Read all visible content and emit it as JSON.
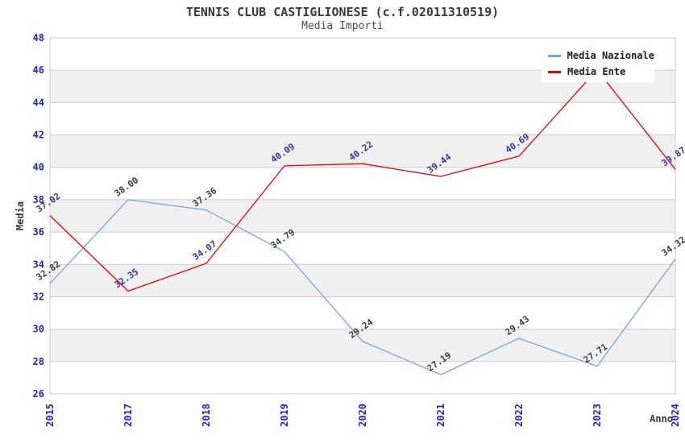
{
  "chart_data": {
    "type": "line",
    "title": "TENNIS CLUB CASTIGLIONESE (c.f.02011310519)",
    "subtitle": "Media Importi",
    "xlabel": "Anno",
    "ylabel": "Media",
    "x_categories": [
      "2015",
      "2017",
      "2018",
      "2019",
      "2020",
      "2021",
      "2022",
      "2023",
      "2024"
    ],
    "ylim": [
      26,
      48
    ],
    "ytick_step": 2,
    "grid": "horizontal gridlines with alternating light-gray bands",
    "legend_position": "top-right inside plot, white box overlapping plot",
    "axis_tick_color": "#2222CC",
    "grid_color": "#CCCCCC",
    "band_color": "#F0F0F0",
    "series": [
      {
        "name": "Media Nazionale",
        "color": "#6FA8DC",
        "label_color": "#3C3C3C",
        "values": [
          32.82,
          38.0,
          37.36,
          34.79,
          29.24,
          27.19,
          29.43,
          27.71,
          34.32
        ]
      },
      {
        "name": "Media Ente",
        "color": "#EE0000",
        "label_color": "#3535A5",
        "values": [
          37.02,
          32.35,
          34.07,
          40.09,
          40.22,
          39.44,
          40.69,
          46.03,
          39.87
        ],
        "hidden_label_note": "the 2023 point label is covered by the legend box; 46.03 estimated from the drawn line"
      }
    ]
  }
}
